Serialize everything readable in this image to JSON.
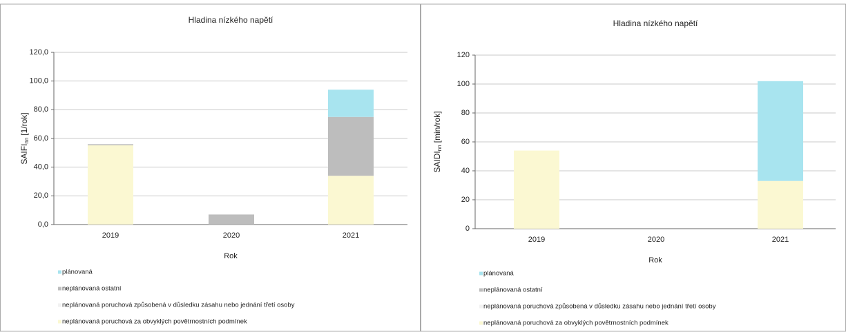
{
  "chart_data": [
    {
      "type": "stacked_bar",
      "title": "Hladina nízkého napětí",
      "y_label": "SAIFI",
      "y_label_sub": "nn",
      "y_label_unit": "[1/rok]",
      "x_label": "Rok",
      "categories": [
        "2019",
        "2020",
        "2021"
      ],
      "series": [
        {
          "name": "neplánovaná poruchová za obvyklých povětrnostních podmínek",
          "color": "#fbf8d2",
          "values": [
            55.2,
            0,
            34
          ]
        },
        {
          "name": "neplánovaná poruchová způsobená v důsledku zásahu nebo jednání třetí osoby",
          "color": "#f2f2f2",
          "values": [
            0,
            0,
            0
          ]
        },
        {
          "name": "neplánovaná ostatní",
          "color": "#bdbdbd",
          "values": [
            0.8,
            7,
            41
          ]
        },
        {
          "name": "plánovaná",
          "color": "#a8e4ef",
          "values": [
            0,
            0,
            19
          ]
        }
      ],
      "ylim": [
        0,
        120
      ],
      "yticks": [
        {
          "value": 0,
          "label": "0,0"
        },
        {
          "value": 20,
          "label": "20,0"
        },
        {
          "value": 40,
          "label": "40,0"
        },
        {
          "value": 60,
          "label": "60,0"
        },
        {
          "value": 80,
          "label": "80,0"
        },
        {
          "value": 100,
          "label": "100,0"
        },
        {
          "value": 120,
          "label": "120,0"
        }
      ],
      "grid": true
    },
    {
      "type": "stacked_bar",
      "title": "Hladina nízkého napětí",
      "y_label": "SAIDI",
      "y_label_sub": "nn",
      "y_label_unit": "[min/rok]",
      "x_label": "Rok",
      "categories": [
        "2019",
        "2020",
        "2021"
      ],
      "series": [
        {
          "name": "neplánovaná poruchová za obvyklých povětrnostních podmínek",
          "color": "#fbf8d2",
          "values": [
            54,
            0,
            33
          ]
        },
        {
          "name": "neplánovaná poruchová způsobená v důsledku zásahu nebo jednání třetí osoby",
          "color": "#f2f2f2",
          "values": [
            0,
            0,
            0
          ]
        },
        {
          "name": "neplánovaná ostatní",
          "color": "#bdbdbd",
          "values": [
            0,
            0,
            0
          ]
        },
        {
          "name": "plánovaná",
          "color": "#a8e4ef",
          "values": [
            0,
            0,
            69
          ]
        }
      ],
      "ylim": [
        0,
        120
      ],
      "yticks": [
        0,
        20,
        40,
        60,
        80,
        100,
        120
      ],
      "grid": true
    }
  ]
}
